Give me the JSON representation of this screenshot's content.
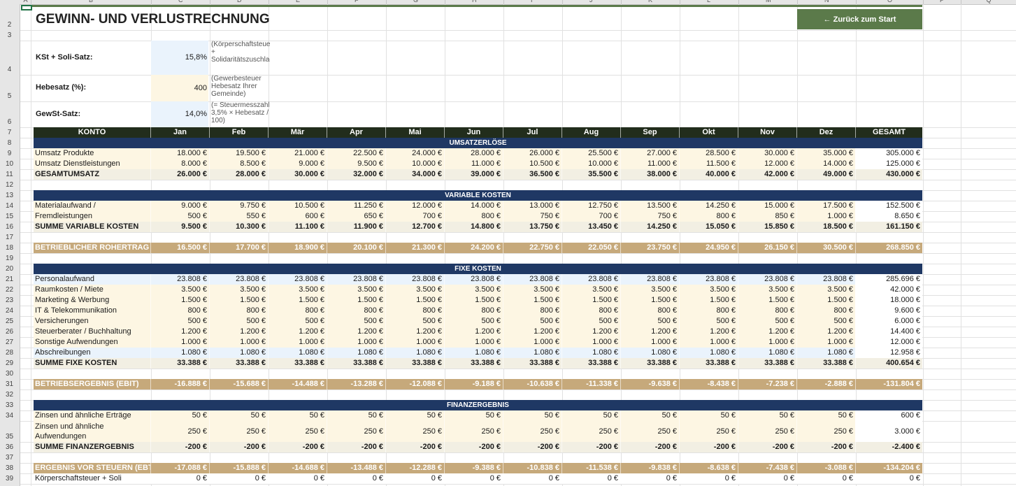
{
  "columns": [
    "A",
    "B",
    "C",
    "D",
    "E",
    "F",
    "G",
    "H",
    "I",
    "J",
    "K",
    "L",
    "M",
    "N",
    "O",
    "P",
    "Q"
  ],
  "title": "GEWINN- UND VERLUSTRECHNUNG",
  "back_button": "← Zurück zum Start",
  "row_numbers": [
    "2",
    "3",
    "4",
    "5",
    "6",
    "7",
    "8",
    "9",
    "10",
    "11",
    "12",
    "13",
    "14",
    "15",
    "16",
    "17",
    "18",
    "19",
    "20",
    "21",
    "22",
    "23",
    "24",
    "25",
    "26",
    "27",
    "28",
    "29",
    "30",
    "31",
    "32",
    "33",
    "34",
    "35",
    "36",
    "37",
    "38",
    "39"
  ],
  "params": [
    {
      "label": "KSt + Soli-Satz:",
      "value": "15,8%",
      "note": "(Körperschaftsteuer + Solidaritätszuschlag)"
    },
    {
      "label": "Hebesatz (%):",
      "value": "400",
      "note": "(Gewerbesteuer Hebesatz Ihrer Gemeinde)"
    },
    {
      "label": "GewSt-Satz:",
      "value": "14,0%",
      "note": "(= Steuermesszahl 3,5% × Hebesatz / 100)"
    }
  ],
  "table_header": [
    "KONTO",
    "Jan",
    "Feb",
    "Mär",
    "Apr",
    "Mai",
    "Jun",
    "Jul",
    "Aug",
    "Sep",
    "Okt",
    "Nov",
    "Dez",
    "GESAMT"
  ],
  "rows": [
    {
      "type": "section",
      "label": "UMSATZERLÖSE"
    },
    {
      "type": "item",
      "label": "Umsatz Produkte",
      "values": [
        "18.000 €",
        "19.500 €",
        "21.000 €",
        "22.500 €",
        "24.000 €",
        "28.000 €",
        "26.000 €",
        "25.500 €",
        "27.000 €",
        "28.500 €",
        "30.000 €",
        "35.000 €",
        "305.000 €"
      ]
    },
    {
      "type": "item",
      "label": "Umsatz Dienstleistungen",
      "values": [
        "8.000 €",
        "8.500 €",
        "9.000 €",
        "9.500 €",
        "10.000 €",
        "11.000 €",
        "10.500 €",
        "10.000 €",
        "11.000 €",
        "11.500 €",
        "12.000 €",
        "14.000 €",
        "125.000 €"
      ]
    },
    {
      "type": "sum",
      "label": "GESAMTUMSATZ",
      "values": [
        "26.000 €",
        "28.000 €",
        "30.000 €",
        "32.000 €",
        "34.000 €",
        "39.000 €",
        "36.500 €",
        "35.500 €",
        "38.000 €",
        "40.000 €",
        "42.000 €",
        "49.000 €",
        "430.000 €"
      ]
    },
    {
      "type": "blank"
    },
    {
      "type": "section",
      "label": "VARIABLE KOSTEN"
    },
    {
      "type": "item",
      "label": "Materialaufwand /",
      "values": [
        "9.000 €",
        "9.750 €",
        "10.500 €",
        "11.250 €",
        "12.000 €",
        "14.000 €",
        "13.000 €",
        "12.750 €",
        "13.500 €",
        "14.250 €",
        "15.000 €",
        "17.500 €",
        "152.500 €"
      ]
    },
    {
      "type": "item",
      "label": "Fremdleistungen",
      "values": [
        "500 €",
        "550 €",
        "600 €",
        "650 €",
        "700 €",
        "800 €",
        "750 €",
        "700 €",
        "750 €",
        "800 €",
        "850 €",
        "1.000 €",
        "8.650 €"
      ]
    },
    {
      "type": "sum",
      "label": "SUMME VARIABLE KOSTEN",
      "values": [
        "9.500 €",
        "10.300 €",
        "11.100 €",
        "11.900 €",
        "12.700 €",
        "14.800 €",
        "13.750 €",
        "13.450 €",
        "14.250 €",
        "15.050 €",
        "15.850 €",
        "18.500 €",
        "161.150 €"
      ]
    },
    {
      "type": "blank"
    },
    {
      "type": "tan",
      "label": "BETRIEBLICHER ROHERTRAG",
      "values": [
        "16.500 €",
        "17.700 €",
        "18.900 €",
        "20.100 €",
        "21.300 €",
        "24.200 €",
        "22.750 €",
        "22.050 €",
        "23.750 €",
        "24.950 €",
        "26.150 €",
        "30.500 €",
        "268.850 €"
      ]
    },
    {
      "type": "blank"
    },
    {
      "type": "section",
      "label": "FIXE KOSTEN"
    },
    {
      "type": "blue",
      "label": "Personalaufwand",
      "values": [
        "23.808 €",
        "23.808 €",
        "23.808 €",
        "23.808 €",
        "23.808 €",
        "23.808 €",
        "23.808 €",
        "23.808 €",
        "23.808 €",
        "23.808 €",
        "23.808 €",
        "23.808 €",
        "285.696 €"
      ]
    },
    {
      "type": "item",
      "label": "Raumkosten / Miete",
      "values": [
        "3.500 €",
        "3.500 €",
        "3.500 €",
        "3.500 €",
        "3.500 €",
        "3.500 €",
        "3.500 €",
        "3.500 €",
        "3.500 €",
        "3.500 €",
        "3.500 €",
        "3.500 €",
        "42.000 €"
      ]
    },
    {
      "type": "item",
      "label": "Marketing & Werbung",
      "values": [
        "1.500 €",
        "1.500 €",
        "1.500 €",
        "1.500 €",
        "1.500 €",
        "1.500 €",
        "1.500 €",
        "1.500 €",
        "1.500 €",
        "1.500 €",
        "1.500 €",
        "1.500 €",
        "18.000 €"
      ]
    },
    {
      "type": "item",
      "label": "IT & Telekommunikation",
      "values": [
        "800 €",
        "800 €",
        "800 €",
        "800 €",
        "800 €",
        "800 €",
        "800 €",
        "800 €",
        "800 €",
        "800 €",
        "800 €",
        "800 €",
        "9.600 €"
      ]
    },
    {
      "type": "item",
      "label": "Versicherungen",
      "values": [
        "500 €",
        "500 €",
        "500 €",
        "500 €",
        "500 €",
        "500 €",
        "500 €",
        "500 €",
        "500 €",
        "500 €",
        "500 €",
        "500 €",
        "6.000 €"
      ]
    },
    {
      "type": "item",
      "label": "Steuerberater / Buchhaltung",
      "values": [
        "1.200 €",
        "1.200 €",
        "1.200 €",
        "1.200 €",
        "1.200 €",
        "1.200 €",
        "1.200 €",
        "1.200 €",
        "1.200 €",
        "1.200 €",
        "1.200 €",
        "1.200 €",
        "14.400 €"
      ]
    },
    {
      "type": "item",
      "label": "Sonstige Aufwendungen",
      "values": [
        "1.000 €",
        "1.000 €",
        "1.000 €",
        "1.000 €",
        "1.000 €",
        "1.000 €",
        "1.000 €",
        "1.000 €",
        "1.000 €",
        "1.000 €",
        "1.000 €",
        "1.000 €",
        "12.000 €"
      ]
    },
    {
      "type": "blue",
      "label": "Abschreibungen",
      "values": [
        "1.080 €",
        "1.080 €",
        "1.080 €",
        "1.080 €",
        "1.080 €",
        "1.080 €",
        "1.080 €",
        "1.080 €",
        "1.080 €",
        "1.080 €",
        "1.080 €",
        "1.080 €",
        "12.958 €"
      ]
    },
    {
      "type": "sum",
      "label": "SUMME FIXE KOSTEN",
      "values": [
        "33.388 €",
        "33.388 €",
        "33.388 €",
        "33.388 €",
        "33.388 €",
        "33.388 €",
        "33.388 €",
        "33.388 €",
        "33.388 €",
        "33.388 €",
        "33.388 €",
        "33.388 €",
        "400.654 €"
      ]
    },
    {
      "type": "blank"
    },
    {
      "type": "tan",
      "label": "BETRIEBSERGEBNIS (EBIT)",
      "values": [
        "-16.888 €",
        "-15.688 €",
        "-14.488 €",
        "-13.288 €",
        "-12.088 €",
        "-9.188 €",
        "-10.638 €",
        "-11.338 €",
        "-9.638 €",
        "-8.438 €",
        "-7.238 €",
        "-2.888 €",
        "-131.804 €"
      ]
    },
    {
      "type": "blank"
    },
    {
      "type": "section",
      "label": "FINANZERGEBNIS"
    },
    {
      "type": "item",
      "label": "Zinsen und ähnliche Erträge",
      "values": [
        "50 €",
        "50 €",
        "50 €",
        "50 €",
        "50 €",
        "50 €",
        "50 €",
        "50 €",
        "50 €",
        "50 €",
        "50 €",
        "50 €",
        "600 €"
      ]
    },
    {
      "type": "item",
      "tall": true,
      "label": "Zinsen und ähnliche Aufwendungen",
      "values": [
        "250 €",
        "250 €",
        "250 €",
        "250 €",
        "250 €",
        "250 €",
        "250 €",
        "250 €",
        "250 €",
        "250 €",
        "250 €",
        "250 €",
        "3.000 €"
      ]
    },
    {
      "type": "sum",
      "label": "SUMME FINANZERGEBNIS",
      "values": [
        "-200 €",
        "-200 €",
        "-200 €",
        "-200 €",
        "-200 €",
        "-200 €",
        "-200 €",
        "-200 €",
        "-200 €",
        "-200 €",
        "-200 €",
        "-200 €",
        "-2.400 €"
      ]
    },
    {
      "type": "blank"
    },
    {
      "type": "tan",
      "label": "ERGEBNIS VOR STEUERN (EBT)",
      "values": [
        "-17.088 €",
        "-15.888 €",
        "-14.688 €",
        "-13.488 €",
        "-12.288 €",
        "-9.388 €",
        "-10.838 €",
        "-11.538 €",
        "-9.838 €",
        "-8.638 €",
        "-7.438 €",
        "-3.088 €",
        "-134.204 €"
      ]
    },
    {
      "type": "plain",
      "label": "Körperschaftsteuer + Soli",
      "values": [
        "0 €",
        "0 €",
        "0 €",
        "0 €",
        "0 €",
        "0 €",
        "0 €",
        "0 €",
        "0 €",
        "0 €",
        "0 €",
        "0 €",
        "0 €"
      ]
    }
  ]
}
